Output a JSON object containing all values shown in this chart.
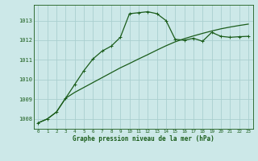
{
  "title": "Graphe pression niveau de la mer (hPa)",
  "bg_color": "#cce8e8",
  "grid_color": "#aacfcf",
  "line_color": "#1a5c1a",
  "xlim": [
    -0.5,
    23.5
  ],
  "ylim": [
    1007.5,
    1013.8
  ],
  "yticks": [
    1008,
    1009,
    1010,
    1011,
    1012,
    1013
  ],
  "xticks": [
    0,
    1,
    2,
    3,
    4,
    5,
    6,
    7,
    8,
    9,
    10,
    11,
    12,
    13,
    14,
    15,
    16,
    17,
    18,
    19,
    20,
    21,
    22,
    23
  ],
  "series1_x": [
    0,
    1,
    2,
    3,
    4,
    5,
    6,
    7,
    8,
    9,
    10,
    11,
    12,
    13,
    14,
    15,
    16,
    17,
    18,
    19,
    20,
    21,
    22,
    23
  ],
  "series1_y": [
    1007.8,
    1008.0,
    1008.35,
    1009.05,
    1009.35,
    1009.6,
    1009.85,
    1010.1,
    1010.35,
    1010.6,
    1010.82,
    1011.05,
    1011.27,
    1011.5,
    1011.72,
    1011.92,
    1012.08,
    1012.22,
    1012.35,
    1012.47,
    1012.58,
    1012.67,
    1012.75,
    1012.82
  ],
  "series2_x": [
    0,
    1,
    2,
    3,
    4,
    5,
    6,
    7,
    8,
    9,
    10,
    11,
    12,
    13,
    14,
    15,
    16,
    17,
    18,
    19,
    20,
    21,
    22,
    23
  ],
  "series2_y": [
    1007.8,
    1008.0,
    1008.35,
    1009.05,
    1009.75,
    1010.45,
    1011.05,
    1011.45,
    1011.7,
    1012.15,
    1013.35,
    1013.4,
    1013.45,
    1013.35,
    1013.0,
    1012.05,
    1012.0,
    1012.1,
    1011.95,
    1012.4,
    1012.2,
    1012.15,
    1012.18,
    1012.2
  ]
}
